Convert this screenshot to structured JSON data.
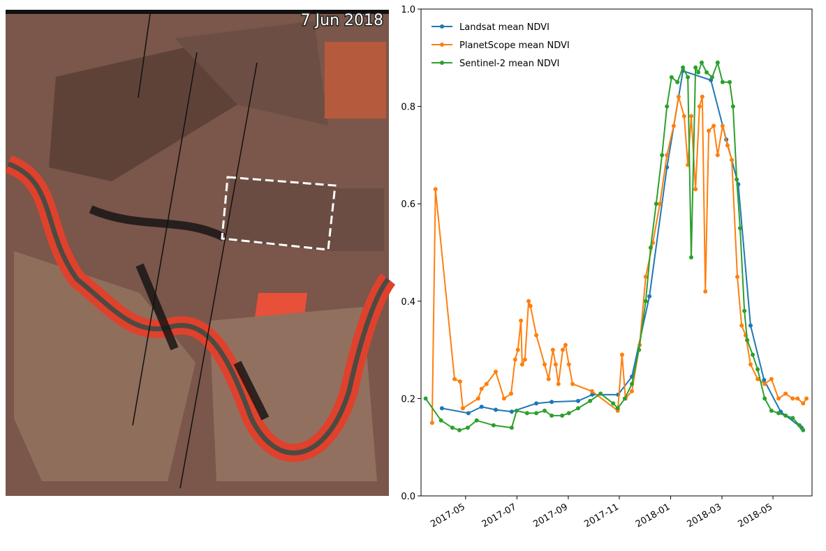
{
  "image_label": "7 Jun 2018",
  "chart_data": {
    "type": "line",
    "xlim": [
      2017.188,
      2018.46
    ],
    "ylim": [
      0,
      1
    ],
    "xticks": [
      {
        "value": 2017.333,
        "label": "2017-05"
      },
      {
        "value": 2017.5,
        "label": "2017-07"
      },
      {
        "value": 2017.667,
        "label": "2017-09"
      },
      {
        "value": 2017.833,
        "label": "2017-11"
      },
      {
        "value": 2018.0,
        "label": "2018-01"
      },
      {
        "value": 2018.167,
        "label": "2018-03"
      },
      {
        "value": 2018.333,
        "label": "2018-05"
      }
    ],
    "yticks": [
      {
        "value": 0,
        "label": "0.0"
      },
      0.2,
      0.4,
      0.6,
      0.8,
      {
        "value": 1,
        "label": "1.0"
      }
    ],
    "grid": false,
    "legend": "upper left",
    "series": [
      {
        "name": "Landsat mean NDVI",
        "color": "#1f77b4",
        "x": [
          2017.256,
          2017.342,
          2017.385,
          2017.431,
          2017.483,
          2017.563,
          2017.613,
          2017.699,
          2017.745,
          2017.829,
          2017.874,
          2017.931,
          2017.988,
          2018.04,
          2018.131,
          2018.181,
          2018.22,
          2018.26,
          2018.304,
          2018.358,
          2018.426
        ],
        "values": [
          0.18,
          0.17,
          0.183,
          0.177,
          0.173,
          0.19,
          0.193,
          0.195,
          0.208,
          0.208,
          0.245,
          0.41,
          0.675,
          0.873,
          0.854,
          0.732,
          0.64,
          0.35,
          0.238,
          0.173,
          0.14
        ]
      },
      {
        "name": "PlanetScope mean NDVI",
        "color": "#ff7f0e",
        "x": [
          2017.224,
          2017.235,
          2017.297,
          2017.315,
          2017.324,
          2017.374,
          2017.385,
          2017.401,
          2017.431,
          2017.458,
          2017.481,
          2017.494,
          2017.503,
          2017.513,
          2017.517,
          2017.526,
          2017.538,
          2017.544,
          2017.563,
          2017.59,
          2017.603,
          2017.617,
          2017.626,
          2017.635,
          2017.649,
          2017.658,
          2017.669,
          2017.681,
          2017.744,
          2017.828,
          2017.842,
          2017.853,
          2017.874,
          2017.899,
          2017.919,
          2017.942,
          2017.965,
          2017.988,
          2018.01,
          2018.026,
          2018.044,
          2018.056,
          2018.067,
          2018.081,
          2018.094,
          2018.103,
          2018.113,
          2018.124,
          2018.14,
          2018.153,
          2018.169,
          2018.185,
          2018.199,
          2018.217,
          2018.231,
          2018.244,
          2018.26,
          2018.283,
          2018.306,
          2018.328,
          2018.351,
          2018.374,
          2018.397,
          2018.413,
          2018.431,
          2018.442
        ],
        "values": [
          0.15,
          0.63,
          0.24,
          0.235,
          0.18,
          0.2,
          0.22,
          0.23,
          0.255,
          0.2,
          0.21,
          0.28,
          0.3,
          0.36,
          0.27,
          0.28,
          0.4,
          0.39,
          0.33,
          0.27,
          0.24,
          0.3,
          0.27,
          0.23,
          0.3,
          0.31,
          0.27,
          0.23,
          0.215,
          0.175,
          0.29,
          0.2,
          0.215,
          0.31,
          0.45,
          0.52,
          0.6,
          0.7,
          0.76,
          0.82,
          0.78,
          0.68,
          0.78,
          0.63,
          0.8,
          0.82,
          0.42,
          0.75,
          0.76,
          0.7,
          0.76,
          0.72,
          0.69,
          0.45,
          0.35,
          0.33,
          0.27,
          0.24,
          0.23,
          0.24,
          0.2,
          0.21,
          0.2,
          0.2,
          0.19,
          0.2
        ]
      },
      {
        "name": "Sentinel-2 mean NDVI",
        "color": "#2ca02c",
        "x": [
          2017.203,
          2017.253,
          2017.29,
          2017.313,
          2017.34,
          2017.369,
          2017.424,
          2017.483,
          2017.499,
          2017.533,
          2017.563,
          2017.59,
          2017.613,
          2017.647,
          2017.669,
          2017.699,
          2017.738,
          2017.772,
          2017.813,
          2017.828,
          2017.851,
          2017.874,
          2017.897,
          2017.919,
          2017.935,
          2017.953,
          2017.972,
          2017.988,
          2018.003,
          2018.022,
          2018.04,
          2018.056,
          2018.067,
          2018.081,
          2018.09,
          2018.101,
          2018.117,
          2018.135,
          2018.153,
          2018.169,
          2018.192,
          2018.203,
          2018.215,
          2018.226,
          2018.24,
          2018.249,
          2018.267,
          2018.283,
          2018.306,
          2018.328,
          2018.351,
          2018.374,
          2018.397,
          2018.419,
          2018.431
        ],
        "values": [
          0.2,
          0.155,
          0.14,
          0.135,
          0.14,
          0.155,
          0.145,
          0.14,
          0.175,
          0.17,
          0.17,
          0.175,
          0.165,
          0.165,
          0.17,
          0.18,
          0.195,
          0.21,
          0.19,
          0.18,
          0.2,
          0.23,
          0.3,
          0.4,
          0.51,
          0.6,
          0.7,
          0.8,
          0.86,
          0.85,
          0.88,
          0.86,
          0.49,
          0.88,
          0.87,
          0.89,
          0.87,
          0.86,
          0.89,
          0.85,
          0.85,
          0.8,
          0.65,
          0.55,
          0.38,
          0.32,
          0.29,
          0.26,
          0.2,
          0.175,
          0.17,
          0.165,
          0.16,
          0.145,
          0.135
        ]
      }
    ]
  }
}
